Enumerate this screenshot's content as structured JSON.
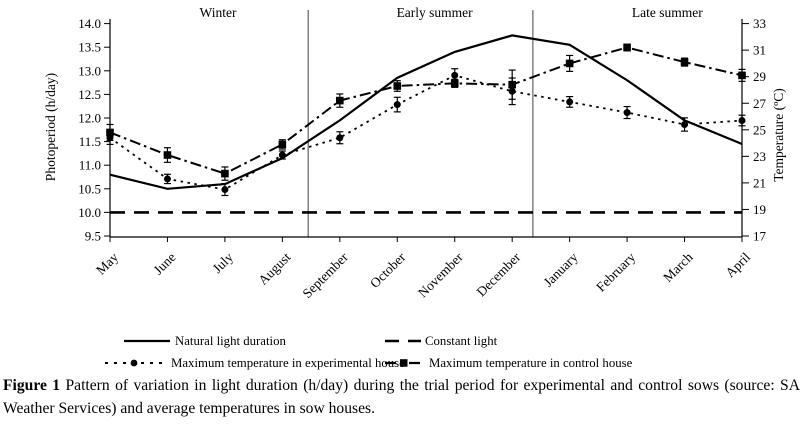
{
  "figure": {
    "caption_label": "Figure 1",
    "caption_text": "Pattern of variation in light duration (h/day) during the trial period for experimental and control sows (source: SA Weather Services) and average temperatures in sow houses."
  },
  "chart_data": {
    "type": "line",
    "title": "",
    "categories": [
      "May",
      "June",
      "July",
      "August",
      "September",
      "October",
      "November",
      "December",
      "January",
      "February",
      "March",
      "April"
    ],
    "ylabel_left": "Photoperiod (h/day)",
    "ylabel_right": "Temperature (ºC)",
    "left_axis": {
      "min": 9.5,
      "max": 14.0,
      "step": 0.5,
      "tick_labels": [
        "14.0",
        "13.5",
        "13.0",
        "12.5",
        "12.0",
        "11.5",
        "11.0",
        "10.5",
        "10.0",
        "9.5"
      ]
    },
    "right_axis": {
      "min": 17,
      "max": 33,
      "step": 2,
      "tick_labels": [
        "33",
        "31",
        "29",
        "27",
        "25",
        "23",
        "21",
        "19",
        "17"
      ]
    },
    "sections": [
      {
        "label": "Winter",
        "center": 1.88
      },
      {
        "label": "Early summer",
        "center": 5.65
      },
      {
        "label": "Late summer",
        "center": 9.7
      }
    ],
    "dividers": [
      3.45,
      7.36
    ],
    "grid": false,
    "legend_position": "bottom",
    "colors": {
      "line": "#000000",
      "divider": "#6f6f6f"
    },
    "series": [
      {
        "name": "Natural light duration",
        "axis": "left",
        "style": "solid",
        "marker": "none",
        "values": [
          10.8,
          10.5,
          10.6,
          11.15,
          11.95,
          12.85,
          13.4,
          13.75,
          13.55,
          12.8,
          11.95,
          11.45
        ]
      },
      {
        "name": "Constant light",
        "axis": "left",
        "style": "dashed",
        "marker": "none",
        "values": [
          10.0,
          10.0,
          10.0,
          10.0,
          10.0,
          10.0,
          10.0,
          10.0,
          10.0,
          10.0,
          10.0,
          10.0
        ]
      },
      {
        "name": "Maximum temperature in experimental house",
        "axis": "right",
        "style": "dotted",
        "marker": "circle",
        "values": [
          24.4,
          21.3,
          20.5,
          23.1,
          24.4,
          26.9,
          29.1,
          27.9,
          27.1,
          26.3,
          25.4,
          25.7
        ],
        "errors": [
          0.5,
          0.35,
          0.45,
          0.3,
          0.45,
          0.55,
          0.5,
          1.0,
          0.4,
          0.45,
          0.5,
          0.4
        ]
      },
      {
        "name": "Maximum temperature in control house",
        "axis": "right",
        "style": "dashdot",
        "marker": "square",
        "values": [
          24.8,
          23.1,
          21.7,
          23.9,
          27.2,
          28.3,
          28.5,
          28.4,
          30.0,
          31.2,
          30.1,
          29.1
        ],
        "errors": [
          0.6,
          0.55,
          0.5,
          0.35,
          0.5,
          0.4,
          0.3,
          1.1,
          0.6,
          0.25,
          0.3,
          0.45
        ]
      }
    ]
  }
}
